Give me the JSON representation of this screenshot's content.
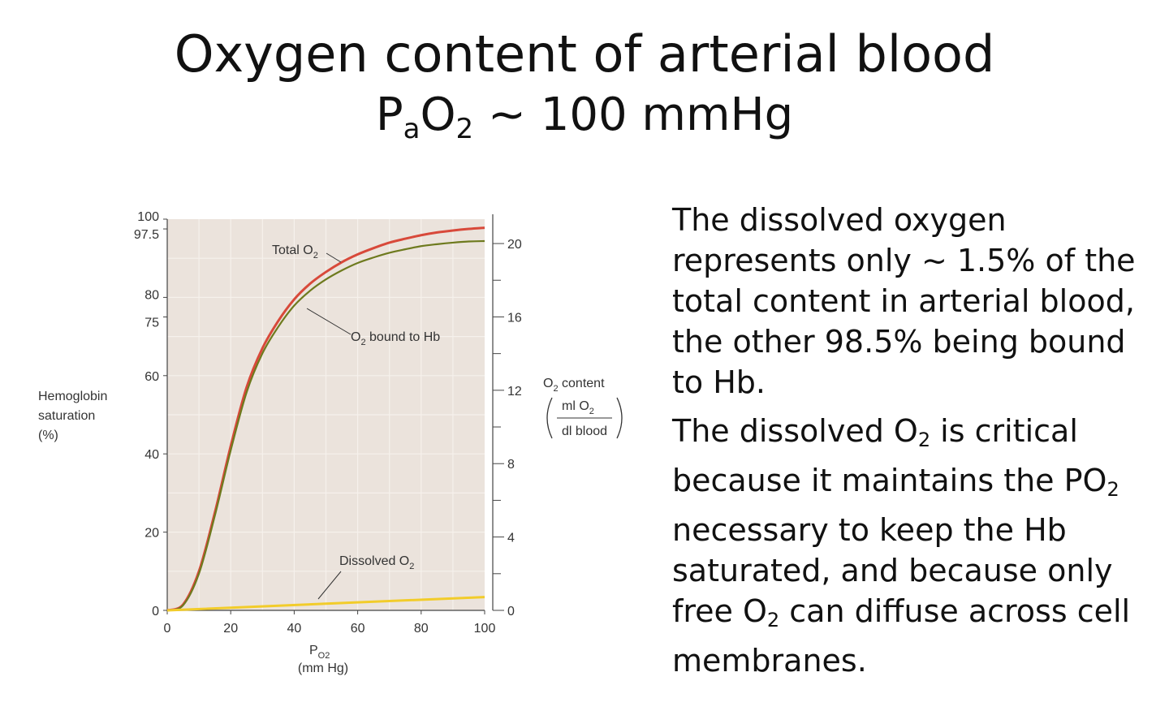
{
  "slide": {
    "title": "Oxygen content of arterial blood",
    "subtitle": {
      "p": "P",
      "p_sub": "a",
      "o": "O",
      "o_sub": "2",
      "rest": " ~ 100 mmHg"
    }
  },
  "explanation": {
    "paragraph1": "The dissolved oxygen represents only ~ 1.5% of the total content in arterial blood, the other 98.5% being bound to Hb.",
    "paragraph2": {
      "part1": "The dissolved O",
      "sub1": "2",
      "part2": " is critical because it maintains the PO",
      "sub2": "2",
      "part3": " necessary to keep the Hb saturated, and because only free O",
      "sub3": "2",
      "part4": " can diffuse across cell membranes."
    }
  },
  "chart_data": {
    "type": "line",
    "xlabel": "PO2",
    "xlabel_main": "P",
    "xlabel_sub": "O2",
    "xlabel_unit": "(mm Hg)",
    "ylabel": [
      "Hemoglobin",
      "saturation",
      "(%)"
    ],
    "y2label": {
      "title": "O",
      "title_sub": "2",
      "title_rest": " content",
      "num": "ml O",
      "num_sub": "2",
      "den": "dl blood"
    },
    "xlim": [
      0,
      100
    ],
    "ylim": [
      0,
      100
    ],
    "y2lim": [
      0,
      21.33
    ],
    "x_ticks": [
      0,
      20,
      40,
      60,
      80,
      100
    ],
    "y_ticks": [
      "0",
      "20",
      "40",
      "60",
      "75",
      "80",
      "97.5",
      "100"
    ],
    "y2_ticks": [
      "0",
      "4",
      "8",
      "12",
      "16",
      "20"
    ],
    "grid": true,
    "colors": {
      "total": "#d8493a",
      "bound": "#6e7a1e",
      "dissolved": "#f2cc2a",
      "plot_bg": "#ebe3dc"
    },
    "series": [
      {
        "name": "Total O2",
        "label_main": "Total O",
        "label_sub": "2",
        "x": [
          0,
          5,
          10,
          15,
          20,
          25,
          30,
          35,
          40,
          45,
          50,
          55,
          60,
          65,
          70,
          75,
          80,
          85,
          90,
          95,
          100
        ],
        "y": [
          0,
          1.5,
          10,
          25,
          42,
          57,
          67,
          74,
          79.5,
          83.5,
          86.5,
          89,
          91,
          92.6,
          94,
          95,
          95.9,
          96.6,
          97.1,
          97.5,
          97.8
        ]
      },
      {
        "name": "O2 bound to Hb",
        "label_main": "O",
        "label_sub": "2",
        "label_rest": " bound to Hb",
        "x": [
          0,
          5,
          10,
          15,
          20,
          25,
          30,
          35,
          40,
          45,
          50,
          55,
          60,
          65,
          70,
          75,
          80,
          85,
          90,
          95,
          100
        ],
        "y": [
          0,
          1.3,
          9.4,
          24.2,
          40.9,
          55.7,
          65.7,
          72.5,
          77.9,
          81.7,
          84.6,
          86.9,
          88.8,
          90.2,
          91.4,
          92.3,
          93.1,
          93.6,
          94,
          94.3,
          94.4
        ]
      },
      {
        "name": "Dissolved O2",
        "label_main": "Dissolved O",
        "label_sub": "2",
        "x": [
          0,
          100
        ],
        "y": [
          0,
          3.4
        ]
      }
    ]
  }
}
